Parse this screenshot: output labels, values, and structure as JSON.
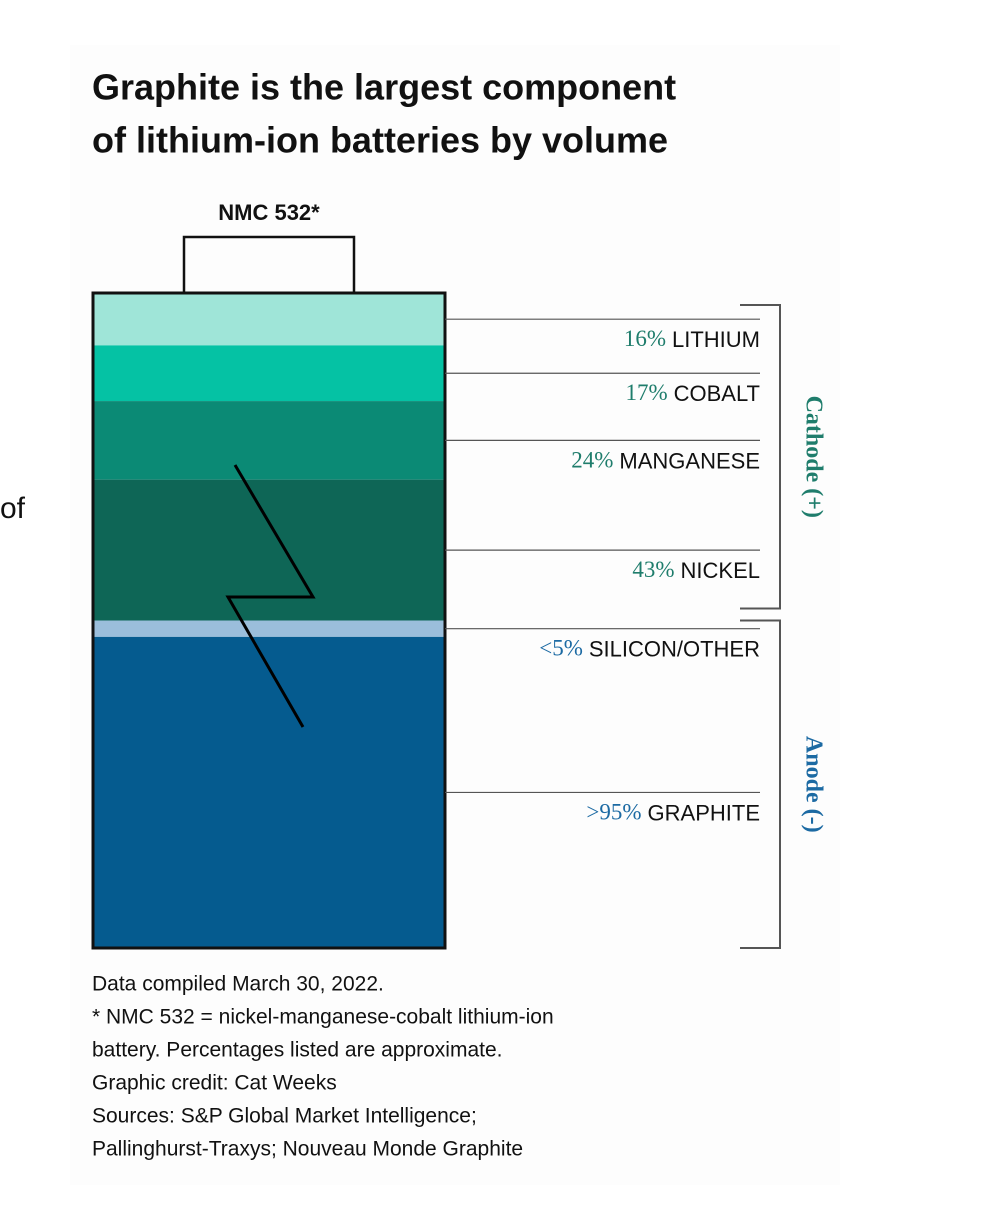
{
  "page": {
    "fragment": "of"
  },
  "chart_data": {
    "type": "stacked_bar",
    "title": [
      "Graphite is the largest component",
      "of lithium-ion batteries by volume"
    ],
    "category": "NMC 532*",
    "groups": [
      {
        "name": "Cathode (+)",
        "color": "#1f7d6c",
        "series": [
          {
            "name": "LITHIUM",
            "value": 16,
            "value_label": "16%",
            "color": "#9fe5d8"
          },
          {
            "name": "COBALT",
            "value": 17,
            "value_label": "17%",
            "color": "#05c2a4"
          },
          {
            "name": "MANGANESE",
            "value": 24,
            "value_label": "24%",
            "color": "#0b8a75"
          },
          {
            "name": "NICKEL",
            "value": 43,
            "value_label": "43%",
            "color": "#0e6656"
          }
        ]
      },
      {
        "name": "Anode (-)",
        "color": "#1c6aa3",
        "series": [
          {
            "name": "SILICON/OTHER",
            "value": 5,
            "value_label": "<5%",
            "color": "#9bbedb"
          },
          {
            "name": "GRAPHITE",
            "value": 95,
            "value_label": ">95%",
            "color": "#055b8f"
          }
        ]
      }
    ],
    "notes": [
      "Data compiled March 30, 2022.",
      "* NMC 532 = nickel-manganese-cobalt lithium-ion",
      "battery. Percentages listed are approximate.",
      "Graphic credit: Cat Weeks",
      "Sources: S&P Global Market Intelligence;",
      "Pallinghurst-Traxys; Nouveau Monde Graphite"
    ]
  }
}
